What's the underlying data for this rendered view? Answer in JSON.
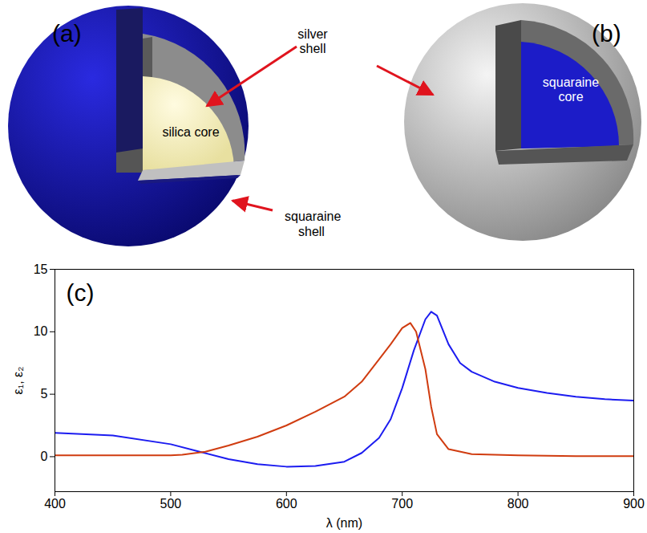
{
  "panel_a": {
    "label": "(a)",
    "outer_shell": "squaraine shell",
    "inner_shell": "silver shell",
    "core": "silica core"
  },
  "panel_b": {
    "label": "(b)",
    "core": "squaraine core"
  },
  "chart_data": {
    "type": "line",
    "panel_label": "(c)",
    "x_label": "λ (nm)",
    "y_label": "ε₁, ε₂",
    "xlim": [
      400,
      900
    ],
    "xticks": [
      400,
      500,
      600,
      700,
      800,
      900
    ],
    "ylim": [
      -2.8,
      15
    ],
    "yticks": [
      0,
      5,
      10,
      15
    ],
    "grid": false,
    "series": [
      {
        "color": "#1c1cf0",
        "x": [
          400,
          450,
          500,
          525,
          550,
          575,
          600,
          625,
          650,
          665,
          680,
          690,
          700,
          710,
          720,
          725,
          730,
          740,
          750,
          760,
          780,
          800,
          825,
          850,
          875,
          900
        ],
        "values": [
          1.9,
          1.7,
          1.0,
          0.4,
          -0.2,
          -0.6,
          -0.8,
          -0.75,
          -0.4,
          0.3,
          1.5,
          3.0,
          5.5,
          8.5,
          11.0,
          11.6,
          11.3,
          9.0,
          7.5,
          6.8,
          6.0,
          5.5,
          5.1,
          4.8,
          4.6,
          4.5
        ]
      },
      {
        "color": "#d03c10",
        "x": [
          400,
          450,
          500,
          510,
          530,
          550,
          575,
          600,
          625,
          650,
          665,
          680,
          690,
          700,
          707,
          712,
          720,
          725,
          730,
          740,
          760,
          800,
          850,
          900
        ],
        "values": [
          0.1,
          0.1,
          0.1,
          0.15,
          0.4,
          0.9,
          1.6,
          2.5,
          3.6,
          4.8,
          6.0,
          7.8,
          9.0,
          10.3,
          10.7,
          10.0,
          7.0,
          4.0,
          1.8,
          0.6,
          0.2,
          0.1,
          0.05,
          0.05
        ]
      }
    ]
  }
}
